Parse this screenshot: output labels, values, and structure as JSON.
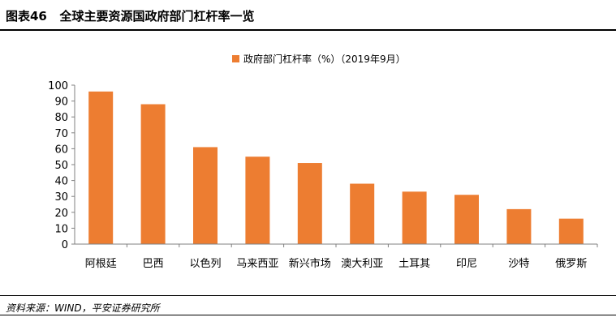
{
  "header": {
    "exhibit_label": "图表46",
    "title": "全球主要资源国政府部门杠杆率一览"
  },
  "footer": {
    "source": "资料来源：WIND，平安证券研究所"
  },
  "colors": {
    "bar": "#ED7D31",
    "axis": "#808080",
    "rule": "#000000"
  },
  "chart_data": {
    "type": "bar",
    "title": "",
    "xlabel": "",
    "ylabel": "",
    "legend_position": "top-center",
    "grid": false,
    "ylim": [
      0,
      100
    ],
    "yticks": [
      0,
      10,
      20,
      30,
      40,
      50,
      60,
      70,
      80,
      90,
      100
    ],
    "categories": [
      "阿根廷",
      "巴西",
      "以色列",
      "马来西亚",
      "新兴市场",
      "澳大利亚",
      "土耳其",
      "印尼",
      "沙特",
      "俄罗斯"
    ],
    "series": [
      {
        "name": "政府部门杠杆率（%）（2019年9月）",
        "color": "#ED7D31",
        "values": [
          96,
          88,
          61,
          55,
          51,
          38,
          33,
          31,
          22,
          16
        ]
      }
    ]
  }
}
